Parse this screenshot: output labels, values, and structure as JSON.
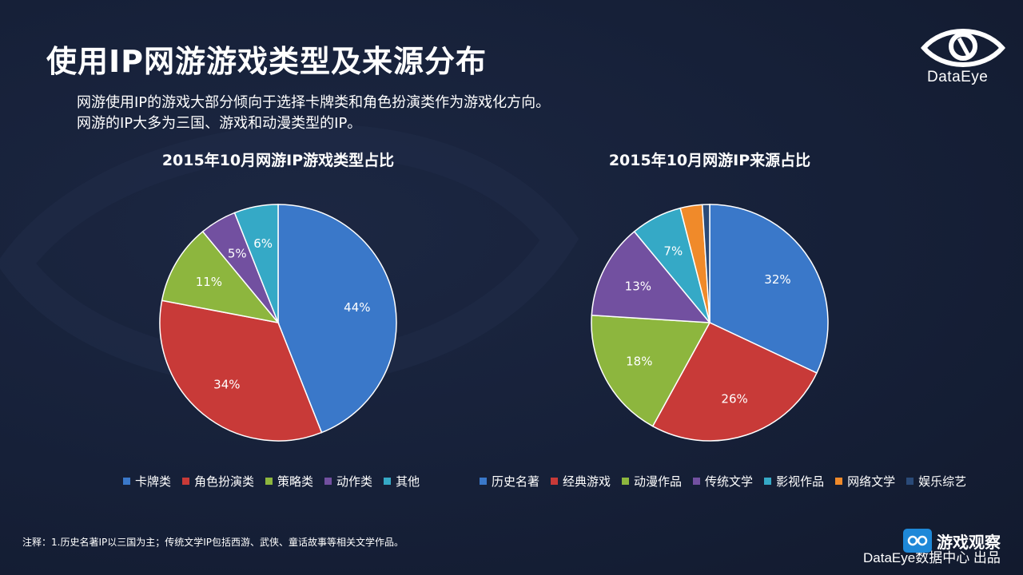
{
  "page": {
    "title": "使用IP网游游戏类型及来源分布",
    "subtitle_lines": [
      "网游使用IP的游戏大部分倾向于选择卡牌类和角色扮演类作为游戏化方向。",
      "网游的IP大多为三国、游戏和动漫类型的IP。"
    ],
    "logo_text": "DataEye",
    "note": "注释：1.历史名著IP以三国为主；传统文学IP包括西游、武侠、童话故事等相关文学作品。",
    "credit": "DataEye数据中心 出品",
    "watermark_text": "游戏观察"
  },
  "chart_data": [
    {
      "type": "pie",
      "title": "2015年10月网游IP游戏类型占比",
      "categories": [
        "卡牌类",
        "角色扮演类",
        "策略类",
        "动作类",
        "其他"
      ],
      "values": [
        44,
        34,
        11,
        5,
        6
      ],
      "labels": [
        "44%",
        "34%",
        "11%",
        "5%",
        "6%"
      ],
      "colors": [
        "#3a78c9",
        "#c83a38",
        "#8db63e",
        "#7250a0",
        "#35a9c6"
      ],
      "legend": "bottom"
    },
    {
      "type": "pie",
      "title": "2015年10月网游IP来源占比",
      "categories": [
        "历史名著",
        "经典游戏",
        "动漫作品",
        "传统文学",
        "影视作品",
        "网络文学",
        "娱乐综艺"
      ],
      "values": [
        32,
        26,
        18,
        13,
        7,
        3,
        1
      ],
      "labels": [
        "32%",
        "26%",
        "18%",
        "13%",
        "7%",
        "3%",
        "1%"
      ],
      "colors": [
        "#3a78c9",
        "#c83a38",
        "#8db63e",
        "#7250a0",
        "#35a9c6",
        "#f08a2a",
        "#2a4a78"
      ],
      "legend": "bottom"
    }
  ]
}
